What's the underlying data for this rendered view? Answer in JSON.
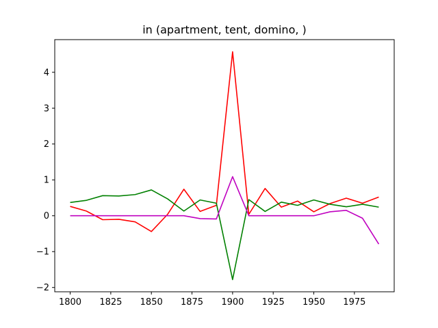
{
  "chart_data": {
    "type": "line",
    "title": "in (apartment, tent, domino, )",
    "xlabel": "",
    "ylabel": "",
    "xlim": [
      1790.5,
      1999.5
    ],
    "ylim": [
      -2.12,
      4.91
    ],
    "grid": false,
    "x": [
      1800,
      1810,
      1820,
      1830,
      1840,
      1850,
      1860,
      1870,
      1880,
      1890,
      1900,
      1910,
      1920,
      1930,
      1940,
      1950,
      1960,
      1970,
      1980,
      1990
    ],
    "xticks": [
      1800,
      1825,
      1850,
      1875,
      1900,
      1925,
      1950,
      1975
    ],
    "xtick_labels": [
      "1800",
      "1825",
      "1850",
      "1875",
      "1900",
      "1925",
      "1950",
      "1975"
    ],
    "yticks": [
      -2,
      -1,
      0,
      1,
      2,
      3,
      4
    ],
    "ytick_labels": [
      "−2",
      "−1",
      "0",
      "1",
      "2",
      "3",
      "4"
    ],
    "series": [
      {
        "color": "#ff0000",
        "values": [
          0.26,
          0.13,
          -0.11,
          -0.1,
          -0.17,
          -0.44,
          0.04,
          0.74,
          0.12,
          0.29,
          4.57,
          0.04,
          0.76,
          0.24,
          0.41,
          0.11,
          0.34,
          0.49,
          0.35,
          0.52
        ]
      },
      {
        "color": "#008000",
        "values": [
          0.37,
          0.43,
          0.56,
          0.55,
          0.59,
          0.72,
          0.47,
          0.13,
          0.44,
          0.35,
          -1.78,
          0.45,
          0.12,
          0.38,
          0.29,
          0.44,
          0.32,
          0.25,
          0.32,
          0.24
        ]
      },
      {
        "color": "#bf00bf",
        "values": [
          0.0,
          0.0,
          0.0,
          0.0,
          0.0,
          0.0,
          0.0,
          0.0,
          -0.08,
          -0.09,
          1.09,
          0.0,
          0.0,
          0.0,
          0.0,
          0.0,
          0.11,
          0.15,
          -0.07,
          -0.79
        ]
      }
    ]
  }
}
